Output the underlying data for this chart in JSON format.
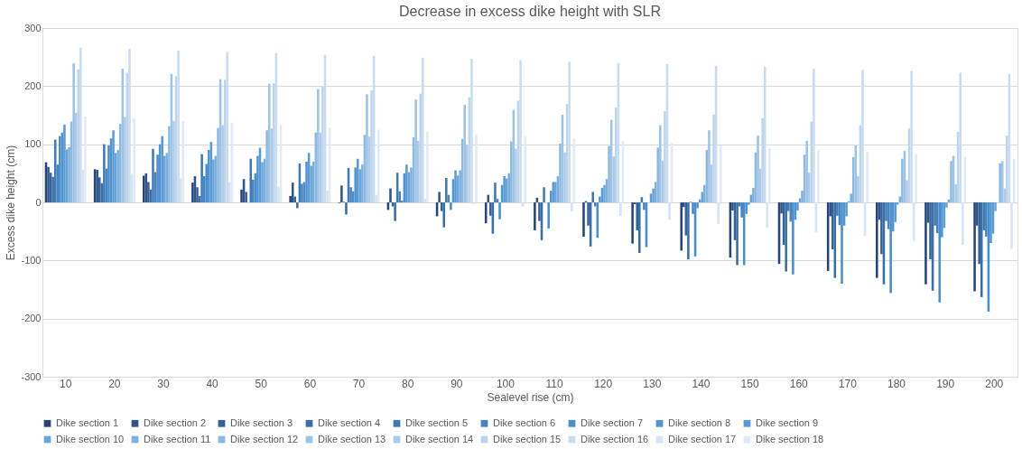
{
  "chart_data": {
    "type": "bar",
    "title": "Decrease in excess dike height with SLR",
    "xlabel": "Sealevel rise (cm)",
    "ylabel": "Excess dike height (cm)",
    "categories": [
      "10",
      "20",
      "30",
      "40",
      "50",
      "60",
      "70",
      "80",
      "90",
      "100",
      "110",
      "120",
      "130",
      "140",
      "150",
      "160",
      "170",
      "180",
      "190",
      "200"
    ],
    "ylim": [
      -300,
      300
    ],
    "yticks": [
      -300,
      -200,
      -100,
      0,
      100,
      200,
      300
    ],
    "grid": "y",
    "legend": "bottom",
    "series": [
      {
        "name": "Dike section 1",
        "color": "#264478",
        "values": [
          69,
          57,
          46,
          34,
          22,
          11,
          -1,
          -13,
          -24,
          -36,
          -48,
          -59,
          -71,
          -83,
          -95,
          -106,
          -118,
          -130,
          -141,
          -153
        ]
      },
      {
        "name": "Dike section 2",
        "color": "#2f5585",
        "values": [
          61,
          56,
          50,
          45,
          40,
          34,
          29,
          24,
          18,
          13,
          8,
          2,
          -3,
          -8,
          -14,
          -19,
          -24,
          -30,
          -35,
          -40
        ]
      },
      {
        "name": "Dike section 3",
        "color": "#356199",
        "values": [
          51,
          43,
          35,
          26,
          18,
          10,
          1,
          -7,
          -15,
          -23,
          -32,
          -40,
          -48,
          -57,
          -65,
          -73,
          -81,
          -89,
          -98,
          -106
        ]
      },
      {
        "name": "Dike section 4",
        "color": "#3a6ea5",
        "values": [
          44,
          33,
          22,
          11,
          0,
          -10,
          -21,
          -32,
          -43,
          -54,
          -65,
          -76,
          -87,
          -98,
          -108,
          -119,
          -130,
          -141,
          -152,
          -163
        ]
      },
      {
        "name": "Dike section 5",
        "color": "#3f7ab3",
        "values": [
          108,
          100,
          92,
          83,
          75,
          67,
          59,
          51,
          42,
          34,
          26,
          18,
          9,
          1,
          -7,
          -15,
          -23,
          -32,
          -40,
          -48
        ]
      },
      {
        "name": "Dike section 6",
        "color": "#4584c0",
        "values": [
          65,
          58,
          52,
          45,
          39,
          32,
          26,
          19,
          13,
          6,
          0,
          -7,
          -13,
          -20,
          -26,
          -33,
          -39,
          -46,
          -53,
          -59
        ]
      },
      {
        "name": "Dike section 7",
        "color": "#4a8dca",
        "values": [
          114,
          98,
          82,
          66,
          50,
          35,
          19,
          3,
          -13,
          -29,
          -45,
          -61,
          -77,
          -93,
          -108,
          -124,
          -140,
          -156,
          -172,
          -188
        ]
      },
      {
        "name": "Dike section 8",
        "color": "#5195d0",
        "values": [
          120,
          110,
          100,
          90,
          80,
          70,
          60,
          50,
          40,
          30,
          20,
          10,
          0,
          -10,
          -20,
          -30,
          -40,
          -50,
          -60,
          -70
        ]
      },
      {
        "name": "Dike section 9",
        "color": "#5b9bd5",
        "values": [
          134,
          124,
          114,
          104,
          94,
          85,
          75,
          65,
          55,
          45,
          35,
          25,
          15,
          5,
          -4,
          -14,
          -24,
          -34,
          -44,
          -54
        ]
      },
      {
        "name": "Dike section 10",
        "color": "#6aa5da",
        "values": [
          91,
          85,
          80,
          74,
          69,
          63,
          57,
          52,
          46,
          41,
          35,
          30,
          24,
          18,
          13,
          7,
          2,
          -4,
          -9,
          -15
        ]
      },
      {
        "name": "Dike section 11",
        "color": "#7cafdd",
        "values": [
          95,
          90,
          85,
          80,
          75,
          70,
          65,
          60,
          55,
          50,
          45,
          40,
          35,
          30,
          25,
          20,
          15,
          10,
          5,
          0
        ]
      },
      {
        "name": "Dike section 12",
        "color": "#8db9e1",
        "values": [
          139,
          135,
          131,
          128,
          124,
          120,
          116,
          112,
          109,
          105,
          101,
          97,
          94,
          90,
          86,
          82,
          78,
          75,
          71,
          67
        ]
      },
      {
        "name": "Dike section 13",
        "color": "#9dc3e6",
        "values": [
          239,
          230,
          221,
          212,
          204,
          195,
          186,
          177,
          168,
          159,
          151,
          142,
          133,
          124,
          115,
          106,
          98,
          89,
          80,
          71
        ]
      },
      {
        "name": "Dike section 14",
        "color": "#adcbe9",
        "values": [
          154,
          147,
          140,
          133,
          127,
          120,
          113,
          106,
          99,
          92,
          86,
          79,
          72,
          65,
          58,
          51,
          45,
          38,
          31,
          24
        ]
      },
      {
        "name": "Dike section 15",
        "color": "#bdd4ec",
        "values": [
          229,
          223,
          217,
          211,
          205,
          199,
          193,
          187,
          181,
          175,
          169,
          163,
          157,
          151,
          145,
          139,
          133,
          127,
          121,
          115
        ]
      },
      {
        "name": "Dike section 16",
        "color": "#c9dcef",
        "values": [
          266,
          264,
          261,
          259,
          257,
          254,
          252,
          249,
          247,
          245,
          242,
          240,
          238,
          235,
          233,
          230,
          228,
          226,
          223,
          221
        ]
      },
      {
        "name": "Dike section 17",
        "color": "#d5e3f2",
        "values": [
          56,
          49,
          42,
          35,
          27,
          20,
          13,
          6,
          -3,
          -8,
          -16,
          -23,
          -30,
          -37,
          -44,
          -51,
          -58,
          -66,
          -73,
          -80
        ]
      },
      {
        "name": "Dike section 18",
        "color": "#e0eaf5",
        "values": [
          148,
          144,
          140,
          137,
          133,
          129,
          125,
          121,
          117,
          113,
          110,
          106,
          102,
          98,
          94,
          90,
          87,
          83,
          79,
          75
        ]
      }
    ]
  }
}
